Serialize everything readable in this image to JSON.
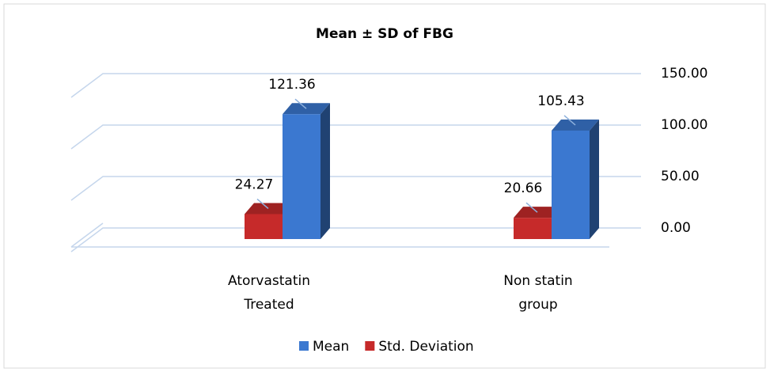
{
  "chart_data": {
    "type": "bar3d",
    "title": "Mean ± SD of FBG",
    "categories": [
      "Atorvastatin Treated",
      "Non statin group"
    ],
    "series": [
      {
        "name": "Mean",
        "color": "#3b78d0",
        "values": [
          121.36,
          105.43
        ]
      },
      {
        "name": "Std. Deviation",
        "color": "#c62a2a",
        "values": [
          24.27,
          20.66
        ]
      }
    ],
    "ylim": [
      0,
      150
    ],
    "yticks": [
      {
        "value": 0,
        "label": "0.00"
      },
      {
        "value": 50,
        "label": "50.00"
      },
      {
        "value": 100,
        "label": "100.00"
      },
      {
        "value": 150,
        "label": "150.00"
      }
    ],
    "grid": true,
    "legend": "bottom"
  }
}
